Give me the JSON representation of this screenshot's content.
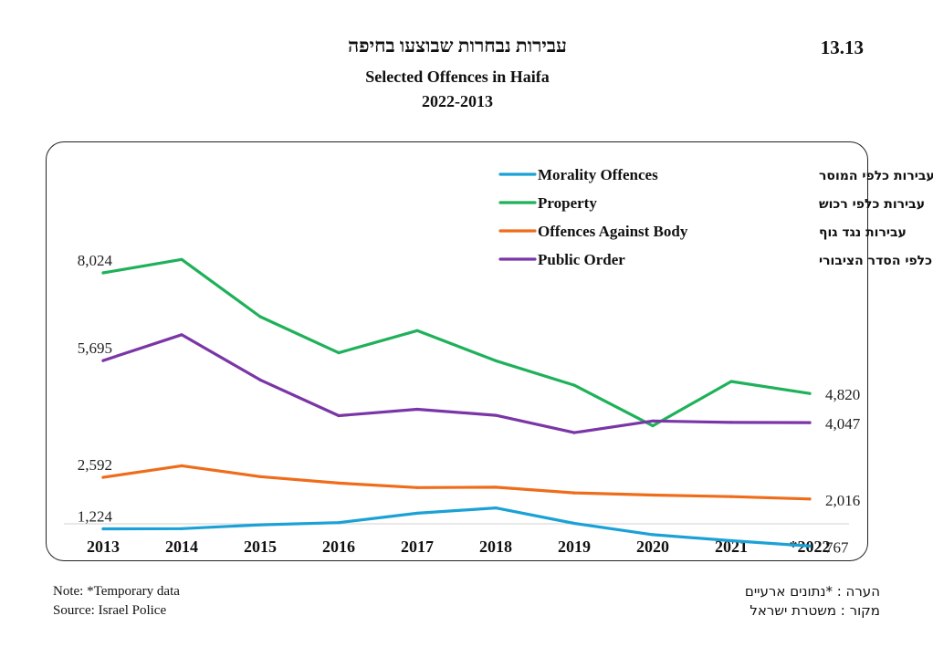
{
  "header": {
    "title_he": "עבירות נבחרות שבוצעו בחיפה",
    "table_number": "13.13",
    "title_en": "Selected Offences in Haifa",
    "years": "2022-2013"
  },
  "footer": {
    "note_en": "Note: *Temporary data",
    "source_en": "Source: Israel Police",
    "note_he": "הערה : *נתונים ארעיים",
    "source_he": "מקור : משטרת ישראל"
  },
  "chart_data": {
    "type": "line",
    "categories": [
      "2013",
      "2014",
      "2015",
      "2016",
      "2017",
      "2018",
      "2019",
      "2020",
      "2021",
      "*2022"
    ],
    "ylim": [
      0,
      9000
    ],
    "grid": false,
    "legend_position": "top-right",
    "series": [
      {
        "name": "Morality  Offences",
        "name_he": "עבירות כלפי המוסר",
        "color": "#1ba1d6",
        "values": [
          1224,
          1230,
          1330,
          1390,
          1640,
          1780,
          1370,
          1070,
          910,
          767
        ],
        "start_label": "1,224",
        "end_label": "767"
      },
      {
        "name": "Property",
        "name_he": "עבירות כלפי רכוש",
        "color": "#1fb15a",
        "values": [
          8024,
          8380,
          6860,
          5900,
          6490,
          5690,
          5040,
          3960,
          5140,
          4820
        ],
        "start_label": "8,024",
        "end_label": "4,820"
      },
      {
        "name": "Offences Against Body",
        "name_he": "עבירות נגד גוף",
        "color": "#ef6c1a",
        "values": [
          2592,
          2900,
          2610,
          2440,
          2320,
          2330,
          2180,
          2120,
          2080,
          2016
        ],
        "start_label": "2,592",
        "end_label": "2,016"
      },
      {
        "name": "Public Order",
        "name_he": "עבירות כלפי הסדר הציבורי",
        "color": "#7a35a6",
        "values": [
          5695,
          6380,
          5180,
          4230,
          4400,
          4240,
          3780,
          4090,
          4050,
          4047
        ],
        "start_label": "5,695",
        "end_label": "4,047"
      }
    ]
  }
}
